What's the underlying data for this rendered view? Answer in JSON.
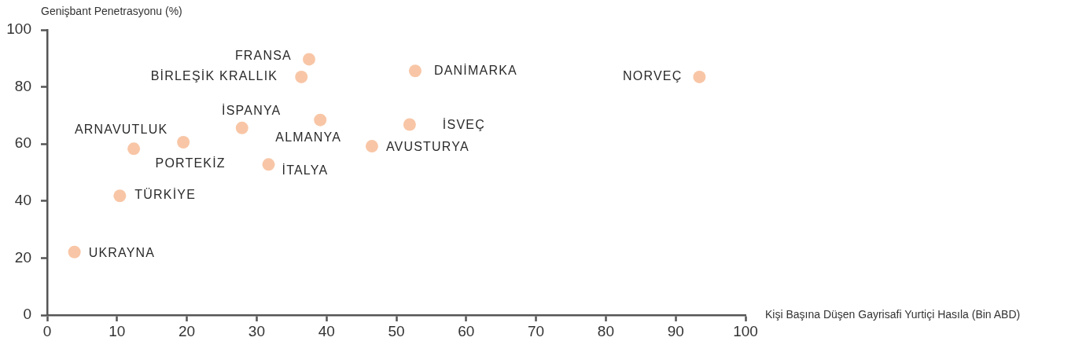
{
  "chart_data": {
    "type": "scatter",
    "xlabel": "Kişi Başına Düşen Gayrisafi Yurtiçi Hasıla (Bin ABD)",
    "ylabel": "Genişbant Penetrasyonu (%)",
    "x": [
      93.4,
      52.7,
      37.5,
      36.4,
      27.9,
      39.1,
      51.9,
      46.5,
      12.4,
      19.5,
      31.7,
      10.4,
      3.9
    ],
    "values": [
      83.5,
      85.6,
      89.7,
      83.5,
      65.6,
      68.4,
      66.8,
      59.2,
      58.3,
      60.6,
      52.8,
      41.8,
      22.1
    ],
    "color": "#f8c6a6",
    "marker": "circle",
    "xlim": [
      0,
      100
    ],
    "xticks": [
      0,
      10,
      20,
      30,
      40,
      50,
      60,
      70,
      80,
      90,
      100
    ],
    "ylim": [
      0,
      100
    ],
    "yticks": [
      0,
      20,
      40,
      60,
      80,
      100
    ],
    "annotations": [
      {
        "text": "NORVEÇ",
        "x": 93.4,
        "y": 83.5
      },
      {
        "text": "DANİMARKA",
        "x": 52.7,
        "y": 85.6
      },
      {
        "text": "FRANSA",
        "x": 37.5,
        "y": 89.7
      },
      {
        "text": "BİRLEŞİK KRALLIK",
        "x": 36.4,
        "y": 83.5
      },
      {
        "text": "İSPANYA",
        "x": 27.9,
        "y": 65.6
      },
      {
        "text": "ALMANYA",
        "x": 39.1,
        "y": 68.4
      },
      {
        "text": "İSVEÇ",
        "x": 51.9,
        "y": 66.8
      },
      {
        "text": "AVUSTURYA",
        "x": 46.5,
        "y": 59.2
      },
      {
        "text": "ARNAVUTLUK",
        "x": 12.4,
        "y": 58.3
      },
      {
        "text": "PORTEKİZ",
        "x": 19.5,
        "y": 60.6
      },
      {
        "text": "İTALYA",
        "x": 31.7,
        "y": 52.8
      },
      {
        "text": "TÜRKİYE",
        "x": 10.4,
        "y": 41.8
      },
      {
        "text": "UKRAYNA",
        "x": 3.9,
        "y": 22.1
      }
    ]
  }
}
